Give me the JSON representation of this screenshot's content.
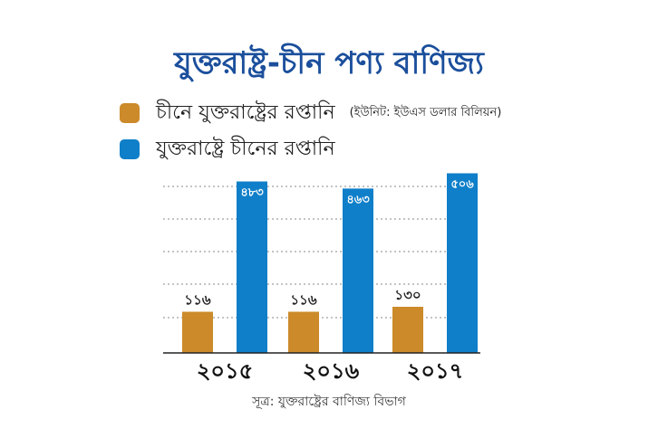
{
  "title": "যুক্তরাষ্ট্র-চীন পণ্য বাণিজ্য",
  "unit_note": "(ইউনিট: ইউএস ডলার বিলিয়ন)",
  "source": "সূত্র: যুক্তরাষ্ট্রের বাণিজ্য বিভাগ",
  "colors": {
    "orange": "#cc8a2a",
    "blue": "#0f7fc9",
    "title": "#1b4f9c"
  },
  "chart_data": {
    "type": "bar",
    "categories": [
      "২০১৫",
      "২০১৬",
      "২০১৭"
    ],
    "series": [
      {
        "name": "চীনে যুক্তরাষ্ট্রের রপ্তানি",
        "values": [
          116,
          116,
          130
        ],
        "labels": [
          "১১৬",
          "১১৬",
          "১৩০"
        ],
        "color": "#cc8a2a"
      },
      {
        "name": "যুক্তরাষ্ট্রে চীনের রপ্তানি",
        "values": [
          483,
          463,
          506
        ],
        "labels": [
          "৪৮৩",
          "৪৬৩",
          "৫০৬"
        ],
        "color": "#0f7fc9"
      }
    ],
    "ylim": [
      0,
      520
    ],
    "grid": true,
    "legend": "top-left"
  }
}
